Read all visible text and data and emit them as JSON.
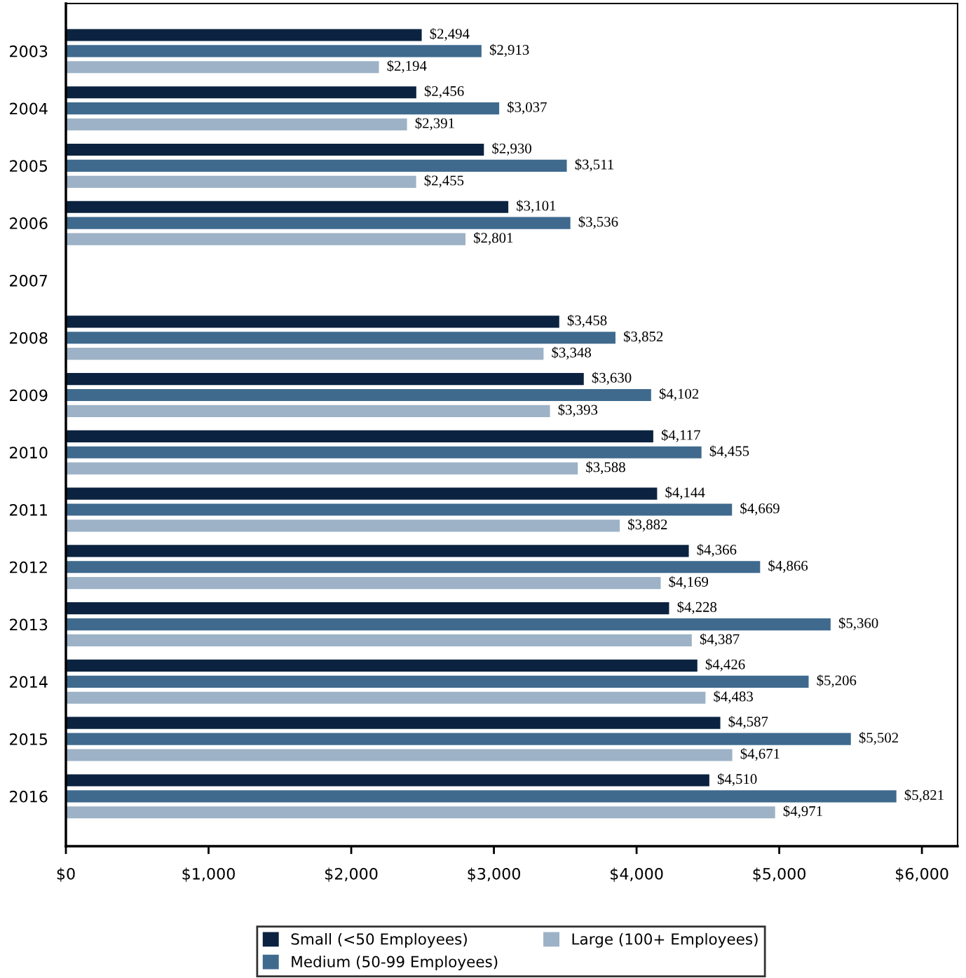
{
  "chart_data": {
    "type": "bar",
    "orientation": "horizontal",
    "categories": [
      "2003",
      "2004",
      "2005",
      "2006",
      "2007",
      "2008",
      "2009",
      "2010",
      "2011",
      "2012",
      "2013",
      "2014",
      "2015",
      "2016"
    ],
    "series": [
      {
        "name": "Small (<50 Employees)",
        "color": "#0b2340",
        "values": [
          2494,
          2456,
          2930,
          3101,
          null,
          3458,
          3630,
          4117,
          4144,
          4366,
          4228,
          4426,
          4587,
          4510
        ],
        "value_labels": [
          "$2,494",
          "$2,456",
          "$2,930",
          "$3,101",
          null,
          "$3,458",
          "$3,630",
          "$4,117",
          "$4,144",
          "$4,366",
          "$4,228",
          "$4,426",
          "$4,587",
          "$4,510"
        ]
      },
      {
        "name": "Medium (50-99 Employees)",
        "color": "#3f6a8e",
        "values": [
          2913,
          3037,
          3511,
          3536,
          null,
          3852,
          4102,
          4455,
          4669,
          4866,
          5360,
          5206,
          5502,
          5821
        ],
        "value_labels": [
          "$2,913",
          "$3,037",
          "$3,511",
          "$3,536",
          null,
          "$3,852",
          "$4,102",
          "$4,455",
          "$4,669",
          "$4,866",
          "$5,360",
          "$5,206",
          "$5,502",
          "$5,821"
        ]
      },
      {
        "name": "Large (100+ Employees)",
        "color": "#9db2c6",
        "values": [
          2194,
          2391,
          2455,
          2801,
          null,
          3348,
          3393,
          3588,
          3882,
          4169,
          4387,
          4483,
          4671,
          4971
        ],
        "value_labels": [
          "$2,194",
          "$2,391",
          "$2,455",
          "$2,801",
          null,
          "$3,348",
          "$3,393",
          "$3,588",
          "$3,882",
          "$4,169",
          "$4,387",
          "$4,483",
          "$4,671",
          "$4,971"
        ]
      }
    ],
    "xlim": [
      0,
      6250
    ],
    "xticks": [
      {
        "value": 0,
        "label": "$0"
      },
      {
        "value": 1000,
        "label": "$1,000"
      },
      {
        "value": 2000,
        "label": "$2,000"
      },
      {
        "value": 3000,
        "label": "$3,000"
      },
      {
        "value": 4000,
        "label": "$4,000"
      },
      {
        "value": 5000,
        "label": "$5,000"
      },
      {
        "value": 6000,
        "label": "$6,000"
      }
    ],
    "legend": "bottom"
  }
}
